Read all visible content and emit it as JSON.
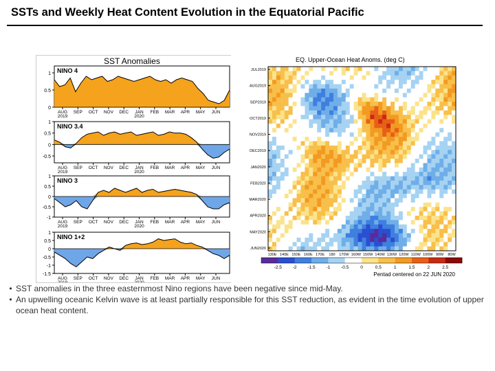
{
  "title": "SSTs and Weekly Heat Content Evolution in the Equatorial Pacific",
  "colors": {
    "warm": "#f5a21c",
    "cool": "#6fa6e8"
  },
  "chart_data": [
    {
      "type": "area",
      "title": "SST Anomalies",
      "months": [
        "AUG",
        "SEP",
        "OCT",
        "NOV",
        "DEC",
        "JAN",
        "FEB",
        "MAR",
        "APR",
        "MAY",
        "JUN"
      ],
      "years": [
        "2019",
        "2020"
      ],
      "panels": [
        {
          "name": "NINO 4",
          "ylim": [
            0,
            1.2
          ],
          "yticks": [
            "1",
            "0.5",
            "0"
          ],
          "values": [
            0.8,
            0.6,
            0.65,
            0.85,
            0.45,
            0.7,
            0.9,
            0.8,
            0.85,
            0.9,
            0.75,
            0.8,
            0.9,
            0.85,
            0.8,
            0.75,
            0.8,
            0.85,
            0.9,
            0.8,
            0.75,
            0.8,
            0.7,
            0.8,
            0.85,
            0.8,
            0.75,
            0.55,
            0.4,
            0.2,
            0.15,
            0.1,
            0.2,
            0.5
          ]
        },
        {
          "name": "NINO 3.4",
          "ylim": [
            -0.8,
            1.0
          ],
          "yticks": [
            "1",
            "0.5",
            "0",
            "-0.5"
          ],
          "values": [
            0.2,
            0.1,
            -0.1,
            -0.15,
            0.05,
            0.3,
            0.45,
            0.5,
            0.55,
            0.4,
            0.5,
            0.55,
            0.45,
            0.5,
            0.55,
            0.4,
            0.45,
            0.5,
            0.55,
            0.4,
            0.45,
            0.55,
            0.5,
            0.5,
            0.45,
            0.3,
            0.1,
            -0.2,
            -0.45,
            -0.6,
            -0.55,
            -0.35,
            -0.2
          ]
        },
        {
          "name": "NINO 3",
          "ylim": [
            -1.0,
            1.0
          ],
          "yticks": [
            "1",
            "0.5",
            "0",
            "-0.5",
            "-1"
          ],
          "values": [
            -0.1,
            -0.3,
            -0.5,
            -0.4,
            -0.2,
            -0.5,
            -0.6,
            -0.2,
            0.2,
            0.3,
            0.2,
            0.4,
            0.3,
            0.2,
            0.3,
            0.4,
            0.2,
            0.3,
            0.35,
            0.2,
            0.25,
            0.3,
            0.35,
            0.3,
            0.25,
            0.2,
            0.1,
            -0.2,
            -0.5,
            -0.6,
            -0.6,
            -0.4,
            -0.3
          ]
        },
        {
          "name": "NINO 1+2",
          "ylim": [
            -1.5,
            1.0
          ],
          "yticks": [
            "1",
            "0.5",
            "0",
            "-0.5",
            "-1",
            "-1.5"
          ],
          "values": [
            -0.2,
            -0.4,
            -0.6,
            -0.9,
            -1.1,
            -0.8,
            -0.5,
            -0.6,
            -0.3,
            -0.1,
            0.1,
            0.0,
            -0.1,
            0.2,
            0.3,
            0.35,
            0.25,
            0.3,
            0.4,
            0.6,
            0.5,
            0.55,
            0.6,
            0.4,
            0.3,
            0.35,
            0.2,
            0.1,
            -0.1,
            -0.3,
            -0.4,
            -0.6,
            -0.4
          ]
        }
      ]
    },
    {
      "type": "heatmap",
      "title": "EQ. Upper-Ocean Heat Anoms. (deg C)",
      "ylabels": [
        "JUL2019",
        "AUG2019",
        "SEP2019",
        "OCT2019",
        "NOV2019",
        "DEC2019",
        "JAN2020",
        "FEB2020",
        "MAR2020",
        "APR2020",
        "MAY2020",
        "JUN2020"
      ],
      "xlabels": [
        "130E",
        "140E",
        "150E",
        "160E",
        "170E",
        "180",
        "170W",
        "160W",
        "150W",
        "140W",
        "130W",
        "120W",
        "110W",
        "100W",
        "90W",
        "80W"
      ],
      "colorbar_values": [
        "-2.5",
        "-2",
        "-1.5",
        "-1",
        "-0.5",
        "0",
        "0.5",
        "1",
        "1.5",
        "2",
        "2.5"
      ],
      "colorbar_colors": [
        "#5a2c9a",
        "#2a4fd0",
        "#3f7fe0",
        "#6faee8",
        "#a6d3f2",
        "#ffffff",
        "#fbe38c",
        "#f8bf4a",
        "#f39a22",
        "#e86018",
        "#c92a12",
        "#8a0a06"
      ],
      "footer": "Pentad centered on 22 JUN 2020"
    }
  ],
  "bullets": [
    "SST anomalies in the three easternmost Nino regions have been negative since mid-May.",
    "An upwelling oceanic Kelvin wave is at least partially responsible for this SST reduction, as evident in the time evolution of upper ocean heat content."
  ]
}
